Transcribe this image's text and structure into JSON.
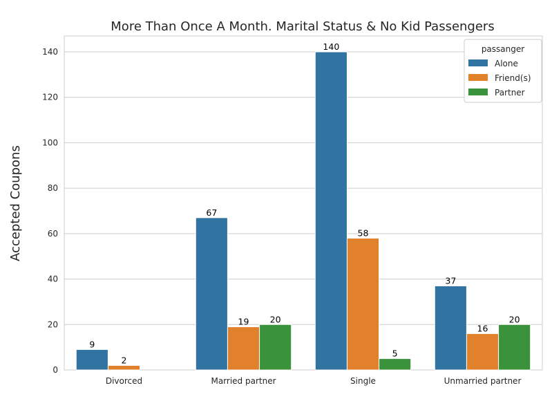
{
  "chart_data": {
    "type": "bar",
    "title": "More Than Once A Month. Marital Status & No Kid Passengers",
    "xlabel": "",
    "ylabel": "Accepted Coupons",
    "categories": [
      "Divorced",
      "Married partner",
      "Single",
      "Unmarried partner"
    ],
    "series": [
      {
        "name": "Alone",
        "color": "#3274a1",
        "values": [
          9,
          67,
          140,
          37
        ]
      },
      {
        "name": "Friend(s)",
        "color": "#e1812c",
        "values": [
          2,
          19,
          58,
          16
        ]
      },
      {
        "name": "Partner",
        "color": "#3a923a",
        "values": [
          0,
          20,
          5,
          20
        ]
      }
    ],
    "data_labels": [
      [
        "9",
        "67",
        "140",
        "37"
      ],
      [
        "2",
        "19",
        "58",
        "16"
      ],
      [
        "",
        "20",
        "5",
        "20"
      ]
    ],
    "ylim": [
      0,
      147
    ],
    "yticks": [
      0,
      20,
      40,
      60,
      80,
      100,
      120,
      140
    ],
    "grid": "y",
    "legend": {
      "title": "passanger",
      "placement": "top-right"
    }
  }
}
